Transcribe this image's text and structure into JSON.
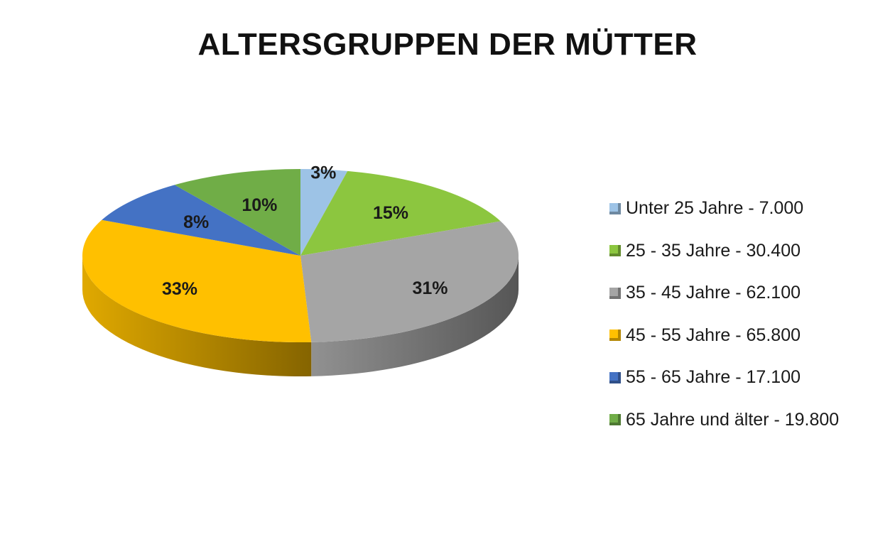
{
  "chart_data": {
    "type": "pie",
    "title": "ALTERSGRUPPEN DER MÜTTER",
    "categories": [
      "Unter 25 Jahre",
      "25 - 35 Jahre",
      "35 - 45 Jahre",
      "45 - 55 Jahre",
      "55 - 65 Jahre",
      "65 Jahre und älter"
    ],
    "values": [
      7000,
      30400,
      62100,
      65800,
      17100,
      19800
    ],
    "percent_labels": [
      "3%",
      "15%",
      "31%",
      "33%",
      "8%",
      "10%"
    ],
    "legend_labels": [
      "Unter 25 Jahre - 7.000",
      "25 - 35 Jahre - 30.400",
      "35 - 45 Jahre - 62.100",
      "45 - 55 Jahre - 65.800",
      "55 - 65 Jahre - 17.100",
      "65 Jahre und älter - 19.800"
    ],
    "colors": [
      "#9DC3E6",
      "#8CC63F",
      "#A5A5A5",
      "#FFC000",
      "#4472C4",
      "#70AD47"
    ],
    "legend_position": "right",
    "style": "3d-pie"
  }
}
